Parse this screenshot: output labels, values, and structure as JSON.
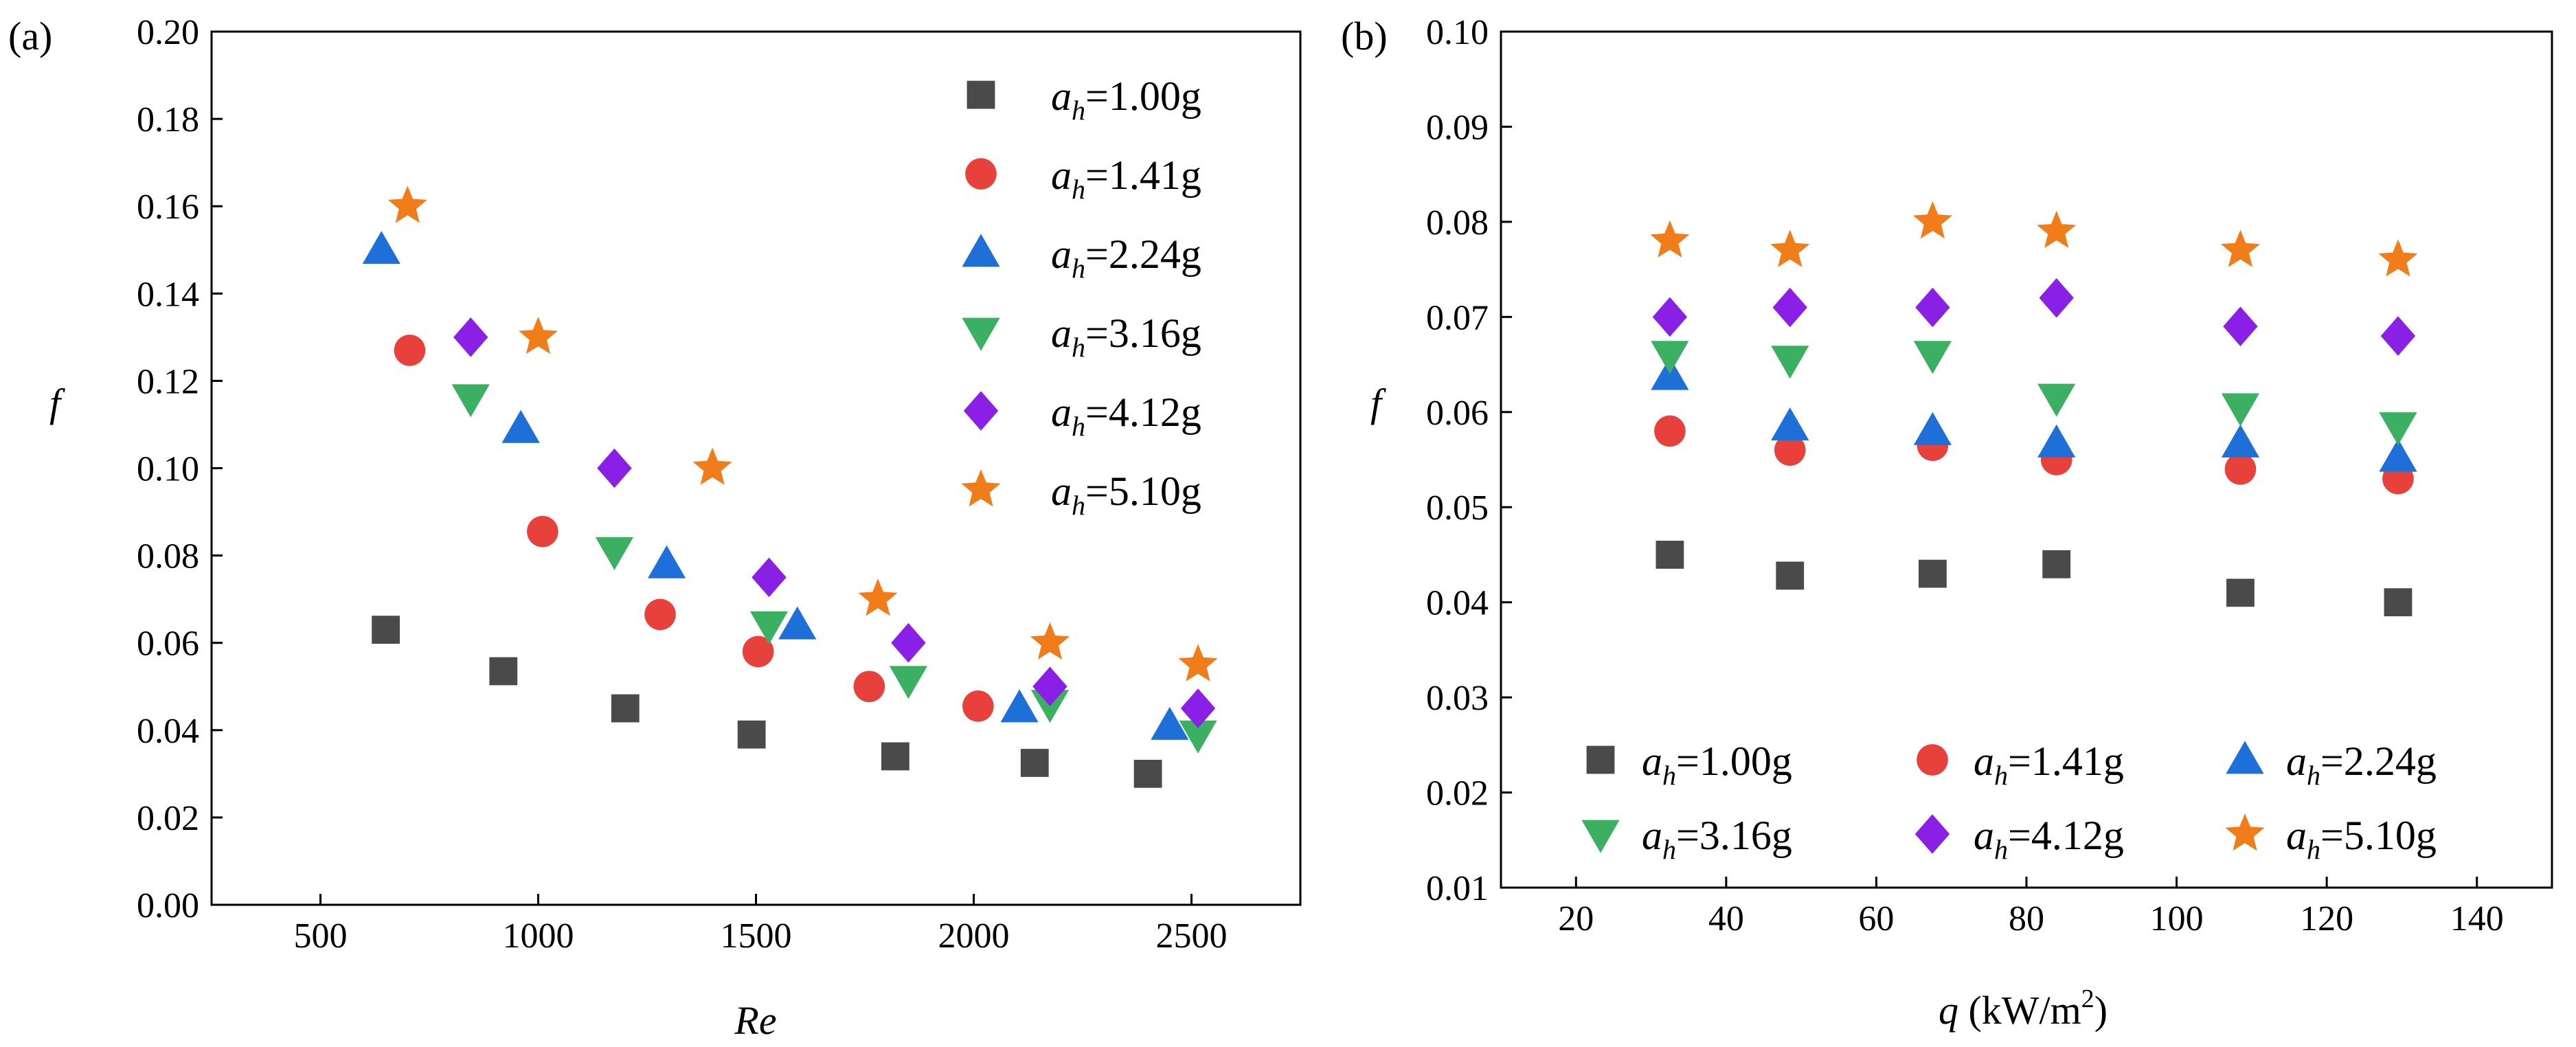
{
  "figure": {
    "panel_labels": [
      "(a)",
      "(b)"
    ]
  },
  "chart_data": [
    {
      "type": "scatter",
      "panel": "(a)",
      "xlabel": "Re",
      "ylabel": "f",
      "xlim": [
        250,
        2750
      ],
      "ylim": [
        0.0,
        0.2
      ],
      "xticks": [
        500,
        1000,
        1500,
        2000,
        2500
      ],
      "xtick_labels": [
        "500",
        "1000",
        "1500",
        "2000",
        "2500"
      ],
      "yticks": [
        0.0,
        0.02,
        0.04,
        0.06,
        0.08,
        0.1,
        0.12,
        0.14,
        0.16,
        0.18,
        0.2
      ],
      "ytick_labels": [
        "0.00",
        "0.02",
        "0.04",
        "0.06",
        "0.08",
        "0.10",
        "0.12",
        "0.14",
        "0.16",
        "0.18",
        "0.20"
      ],
      "legend_position": "top-right",
      "legend_columns": 1,
      "series": [
        {
          "name": "a_h=1.00g",
          "label_main": "a",
          "label_sub": "h",
          "label_rest": "=1.00g",
          "marker": "square",
          "color": "#4a4a4a",
          "x": [
            650,
            920,
            1200,
            1490,
            1820,
            2140,
            2400
          ],
          "y": [
            0.063,
            0.0535,
            0.045,
            0.039,
            0.034,
            0.0325,
            0.03
          ]
        },
        {
          "name": "a_h=1.41g",
          "label_main": "a",
          "label_sub": "h",
          "label_rest": "=1.41g",
          "marker": "circle",
          "color": "#e8403a",
          "x": [
            705,
            1010,
            1280,
            1505,
            1760,
            2010
          ],
          "y": [
            0.127,
            0.0855,
            0.0665,
            0.058,
            0.05,
            0.0455
          ]
        },
        {
          "name": "a_h=2.24g",
          "label_main": "a",
          "label_sub": "h",
          "label_rest": "=2.24g",
          "marker": "triangle-up",
          "color": "#1f6fd8",
          "x": [
            640,
            960,
            1295,
            1595,
            2105,
            2450
          ],
          "y": [
            0.15,
            0.109,
            0.078,
            0.064,
            0.045,
            0.041
          ]
        },
        {
          "name": "a_h=3.16g",
          "label_main": "a",
          "label_sub": "h",
          "label_rest": "=3.16g",
          "marker": "triangle-down",
          "color": "#3bb063",
          "x": [
            845,
            1175,
            1530,
            1850,
            2175,
            2515
          ],
          "y": [
            0.116,
            0.081,
            0.064,
            0.0515,
            0.046,
            0.039
          ]
        },
        {
          "name": "a_h=4.12g",
          "label_main": "a",
          "label_sub": "h",
          "label_rest": "=4.12g",
          "marker": "diamond",
          "color": "#8a1fe6",
          "x": [
            845,
            1175,
            1530,
            1850,
            2175,
            2515
          ],
          "y": [
            0.13,
            0.1,
            0.075,
            0.06,
            0.05,
            0.045
          ]
        },
        {
          "name": "a_h=5.10g",
          "label_main": "a",
          "label_sub": "h",
          "label_rest": "=5.10g",
          "marker": "star",
          "color": "#f07d1a",
          "x": [
            700,
            1000,
            1400,
            1780,
            2175,
            2515
          ],
          "y": [
            0.16,
            0.13,
            0.1,
            0.07,
            0.06,
            0.055
          ]
        }
      ]
    },
    {
      "type": "scatter",
      "panel": "(b)",
      "xlabel": "q (kW/m2)",
      "xlabel_main": "q",
      "xlabel_unit": " (kW/m",
      "xlabel_sup": "2",
      "xlabel_close": ")",
      "ylabel": "f",
      "xlim": [
        10,
        150
      ],
      "ylim": [
        0.01,
        0.1
      ],
      "xticks": [
        20,
        40,
        60,
        80,
        100,
        120,
        140
      ],
      "xtick_labels": [
        "20",
        "40",
        "60",
        "80",
        "100",
        "120",
        "140"
      ],
      "yticks": [
        0.01,
        0.02,
        0.03,
        0.04,
        0.05,
        0.06,
        0.07,
        0.08,
        0.09,
        0.1
      ],
      "ytick_labels": [
        "0.01",
        "0.02",
        "0.03",
        "0.04",
        "0.05",
        "0.06",
        "0.07",
        "0.08",
        "0.09",
        "0.10"
      ],
      "legend_position": "bottom",
      "legend_columns": 3,
      "series": [
        {
          "name": "a_h=1.00g",
          "label_main": "a",
          "label_sub": "h",
          "label_rest": "=1.00g",
          "marker": "square",
          "color": "#4a4a4a",
          "x": [
            32.5,
            48.5,
            67.5,
            84,
            108.5,
            129.5
          ],
          "y": [
            0.045,
            0.0428,
            0.043,
            0.044,
            0.041,
            0.04
          ]
        },
        {
          "name": "a_h=1.41g",
          "label_main": "a",
          "label_sub": "h",
          "label_rest": "=1.41g",
          "marker": "circle",
          "color": "#e8403a",
          "x": [
            32.5,
            48.5,
            67.5,
            84,
            108.5,
            129.5
          ],
          "y": [
            0.058,
            0.056,
            0.0565,
            0.055,
            0.054,
            0.053
          ]
        },
        {
          "name": "a_h=2.24g",
          "label_main": "a",
          "label_sub": "h",
          "label_rest": "=2.24g",
          "marker": "triangle-up",
          "color": "#1f6fd8",
          "x": [
            32.5,
            48.5,
            67.5,
            84,
            108.5,
            129.5
          ],
          "y": [
            0.0638,
            0.0585,
            0.058,
            0.0567,
            0.0567,
            0.0552
          ]
        },
        {
          "name": "a_h=3.16g",
          "label_main": "a",
          "label_sub": "h",
          "label_rest": "=3.16g",
          "marker": "triangle-down",
          "color": "#3bb063",
          "x": [
            32.5,
            48.5,
            67.5,
            84,
            108.5,
            129.5
          ],
          "y": [
            0.066,
            0.0655,
            0.066,
            0.0615,
            0.0605,
            0.0585
          ]
        },
        {
          "name": "a_h=4.12g",
          "label_main": "a",
          "label_sub": "h",
          "label_rest": "=4.12g",
          "marker": "diamond",
          "color": "#8a1fe6",
          "x": [
            32.5,
            48.5,
            67.5,
            84,
            108.5,
            129.5
          ],
          "y": [
            0.07,
            0.071,
            0.071,
            0.072,
            0.069,
            0.068
          ]
        },
        {
          "name": "a_h=5.10g",
          "label_main": "a",
          "label_sub": "h",
          "label_rest": "=5.10g",
          "marker": "star",
          "color": "#f07d1a",
          "x": [
            32.5,
            48.5,
            67.5,
            84,
            108.5,
            129.5
          ],
          "y": [
            0.078,
            0.077,
            0.08,
            0.079,
            0.077,
            0.076
          ]
        }
      ]
    }
  ]
}
